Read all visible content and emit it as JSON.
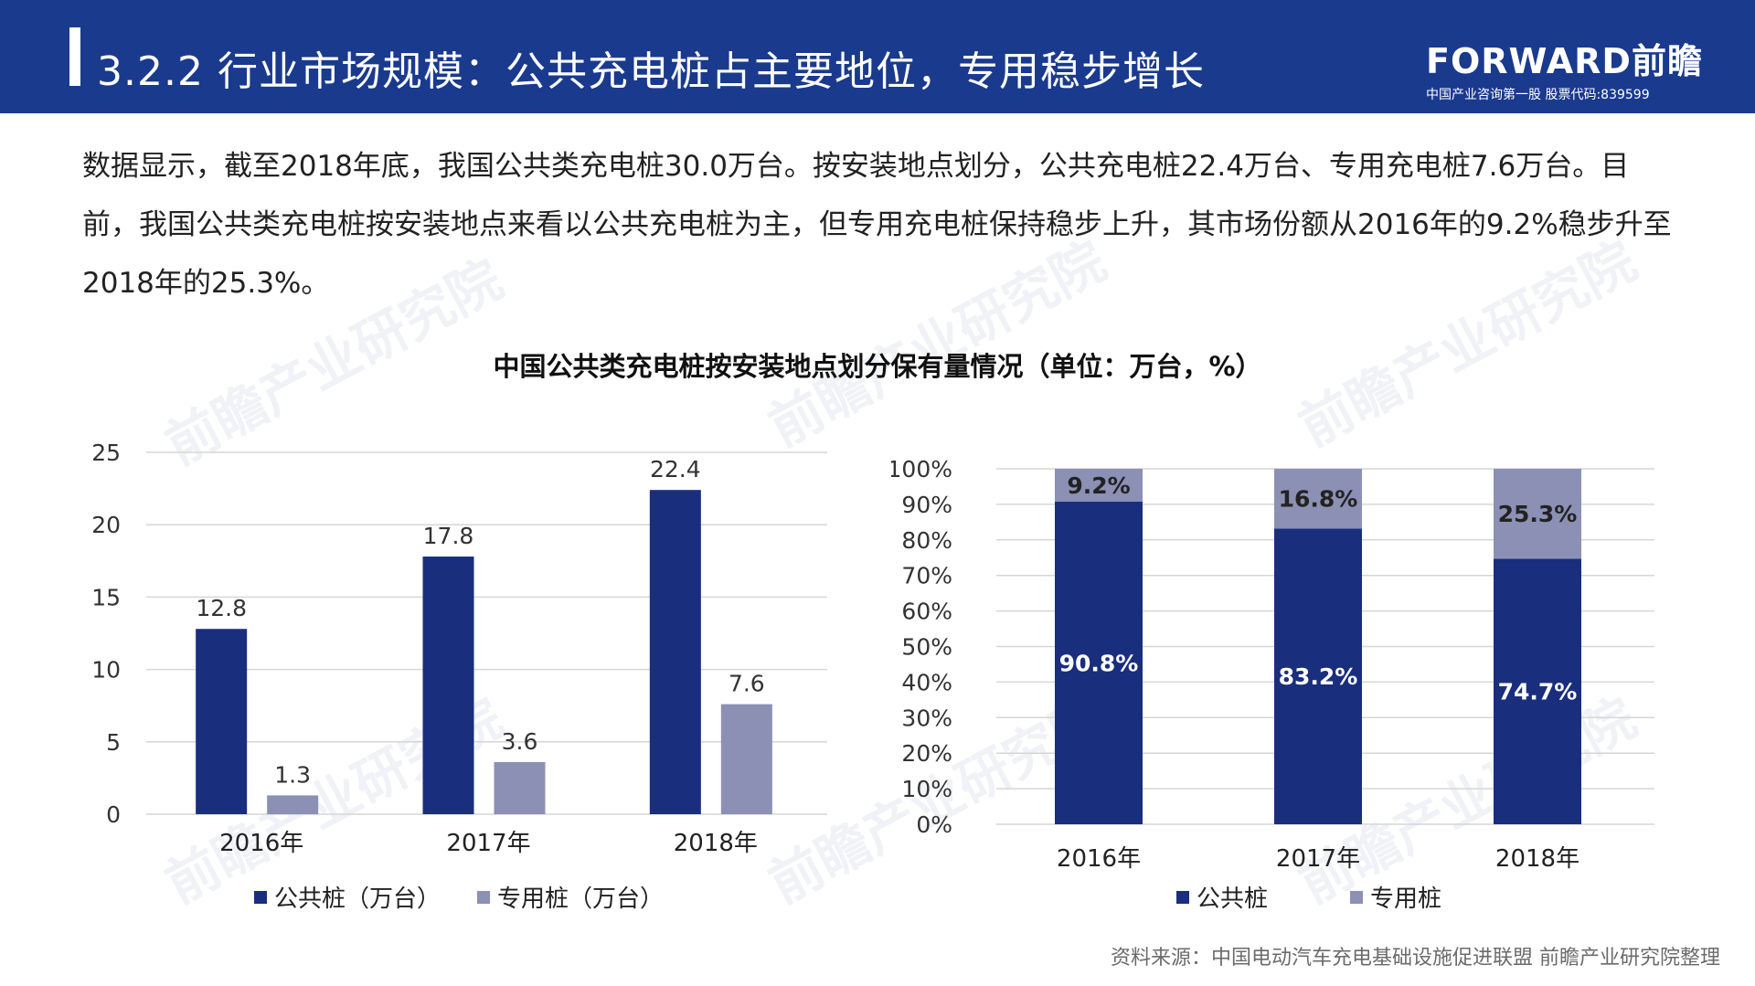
{
  "header": {
    "title": "3.2.2 行业市场规模：公共充电桩占主要地位，专用稳步增长",
    "logo_main": "FORWARD前瞻",
    "logo_sub": "中国产业咨询第一股  股票代码:839599"
  },
  "intro": {
    "text": "数据显示，截至2018年底，我国公共类充电桩30.0万台。按安装地点划分，公共充电桩22.4万台、专用充电桩7.6万台。目前，我国公共类充电桩按安装地点来看以公共充电桩为主，但专用充电桩保持稳步上升，其市场份额从2016年的9.2%稳步升至2018年的25.3%。"
  },
  "chart_title": "中国公共类充电桩按安装地点划分保有量情况（单位：万台，%）",
  "watermark": "前瞻产业研究院",
  "colors": {
    "public": "#1a2e7e",
    "private": "#8b90b4",
    "brand": "#1a3a8e"
  },
  "chart_data": [
    {
      "type": "bar",
      "categories": [
        "2016年",
        "2017年",
        "2018年"
      ],
      "series": [
        {
          "name": "公共桩（万台）",
          "values": [
            12.8,
            17.8,
            22.4
          ]
        },
        {
          "name": "专用桩（万台）",
          "values": [
            1.3,
            3.6,
            7.6
          ]
        }
      ],
      "ylim": [
        0,
        25
      ],
      "yticks": [
        0,
        5,
        10,
        15,
        20,
        25
      ],
      "grid": true,
      "legend": "bottom"
    },
    {
      "type": "bar",
      "stacked": true,
      "categories": [
        "2016年",
        "2017年",
        "2018年"
      ],
      "series": [
        {
          "name": "公共桩",
          "values": [
            90.8,
            83.2,
            74.7
          ],
          "labels": [
            "90.8%",
            "83.2%",
            "74.7%"
          ]
        },
        {
          "name": "专用桩",
          "values": [
            9.2,
            16.8,
            25.3
          ],
          "labels": [
            "9.2%",
            "16.8%",
            "25.3%"
          ]
        }
      ],
      "ylim": [
        0,
        100
      ],
      "yticks": [
        "0%",
        "10%",
        "20%",
        "30%",
        "40%",
        "50%",
        "60%",
        "70%",
        "80%",
        "90%",
        "100%"
      ],
      "grid": true,
      "legend": "bottom"
    }
  ],
  "source": "资料来源：中国电动汽车充电基础设施促进联盟 前瞻产业研究院整理"
}
